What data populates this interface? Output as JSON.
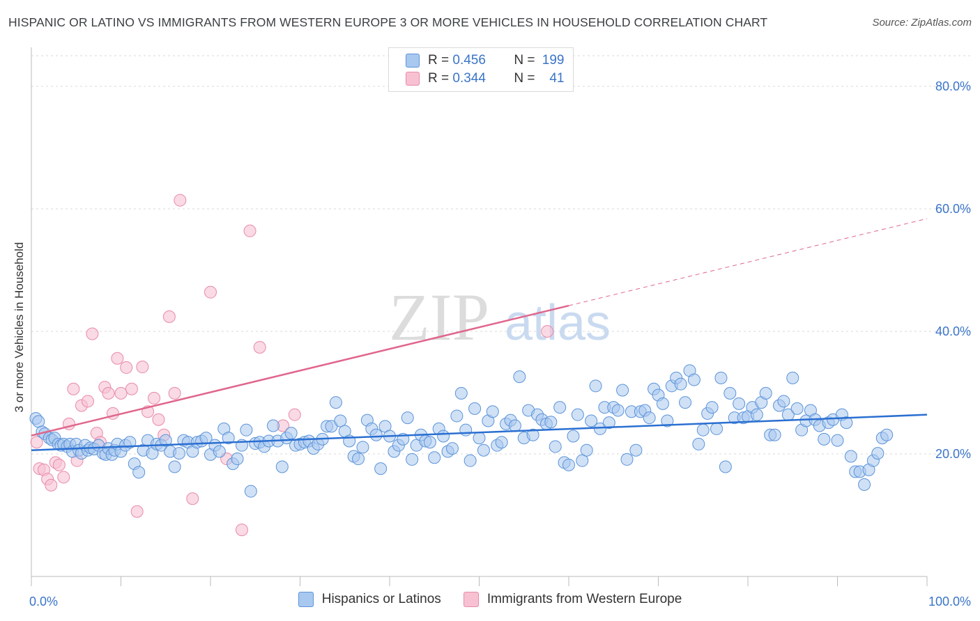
{
  "title": "HISPANIC OR LATINO VS IMMIGRANTS FROM WESTERN EUROPE 3 OR MORE VEHICLES IN HOUSEHOLD CORRELATION CHART",
  "source": "Source: ZipAtlas.com",
  "watermark": {
    "zip": "ZIP",
    "atlas": "atlas"
  },
  "legend_top": [
    {
      "r_label": "R = ",
      "r_value": "0.456",
      "n_label": "N = ",
      "n_value": "199"
    },
    {
      "r_label": "R = ",
      "r_value": "0.344",
      "n_label": "N = ",
      "n_value": "41"
    }
  ],
  "legend_bottom": [
    {
      "label": "Hispanics or Latinos"
    },
    {
      "label": "Immigrants from Western Europe"
    }
  ],
  "colors": {
    "blue_fill": "#a9c8ef",
    "blue_stroke": "#5b93d9",
    "blue_line": "#2a6fd1",
    "pink_fill": "#f7c1d2",
    "pink_stroke": "#e88aa8",
    "pink_line": "#e0668c",
    "tick_label": "#3a74c9",
    "grid": "#d8d8d8"
  },
  "chart_data": {
    "type": "scatter",
    "title": "HISPANIC OR LATINO VS IMMIGRANTS FROM WESTERN EUROPE 3 OR MORE VEHICLES IN HOUSEHOLD CORRELATION CHART",
    "xlabel": "",
    "ylabel": "3 or more Vehicles in Household",
    "xlim": [
      0,
      100
    ],
    "ylim": [
      0,
      85
    ],
    "x_tick_labels": [
      "0.0%",
      "100.0%"
    ],
    "y_ticks": [
      20,
      40,
      60,
      80
    ],
    "y_tick_labels": [
      "20.0%",
      "40.0%",
      "60.0%",
      "80.0%"
    ],
    "grid": true,
    "legend_position": "top-center",
    "series": [
      {
        "name": "Hispanics or Latinos",
        "R": 0.456,
        "N": 199,
        "trend": {
          "x": [
            0,
            100
          ],
          "y": [
            20.6,
            26.4
          ]
        },
        "points": [
          [
            0.5,
            25.8
          ],
          [
            0.8,
            25.3
          ],
          [
            1.2,
            23.6
          ],
          [
            1.5,
            23.3
          ],
          [
            2.0,
            22.6
          ],
          [
            2.3,
            22.3
          ],
          [
            2.6,
            22.6
          ],
          [
            3.0,
            21.6
          ],
          [
            3.3,
            21.4
          ],
          [
            3.6,
            21.6
          ],
          [
            4.0,
            21.2
          ],
          [
            4.3,
            21.6
          ],
          [
            4.6,
            20.4
          ],
          [
            5.0,
            21.6
          ],
          [
            5.3,
            20.6
          ],
          [
            5.6,
            20.1
          ],
          [
            6.0,
            21.4
          ],
          [
            6.3,
            20.6
          ],
          [
            6.6,
            21.0
          ],
          [
            7.0,
            20.8
          ],
          [
            7.5,
            21.4
          ],
          [
            8.0,
            20.1
          ],
          [
            8.3,
            19.9
          ],
          [
            8.6,
            20.9
          ],
          [
            9.0,
            19.9
          ],
          [
            9.3,
            20.6
          ],
          [
            9.6,
            21.6
          ],
          [
            10.0,
            20.4
          ],
          [
            10.5,
            21.4
          ],
          [
            11.0,
            21.9
          ],
          [
            11.5,
            18.4
          ],
          [
            12.0,
            17.0
          ],
          [
            12.5,
            20.6
          ],
          [
            13.0,
            22.2
          ],
          [
            13.5,
            20.1
          ],
          [
            14.0,
            21.6
          ],
          [
            14.5,
            21.4
          ],
          [
            15.0,
            22.2
          ],
          [
            15.5,
            20.4
          ],
          [
            16.0,
            17.9
          ],
          [
            16.5,
            20.1
          ],
          [
            17.0,
            22.2
          ],
          [
            17.5,
            21.9
          ],
          [
            18.0,
            20.4
          ],
          [
            18.5,
            21.9
          ],
          [
            19.0,
            22.1
          ],
          [
            19.5,
            22.6
          ],
          [
            20.0,
            19.9
          ],
          [
            20.5,
            21.4
          ],
          [
            21.0,
            20.4
          ],
          [
            21.5,
            24.1
          ],
          [
            22.0,
            22.6
          ],
          [
            22.5,
            18.4
          ],
          [
            23.0,
            19.2
          ],
          [
            23.5,
            21.4
          ],
          [
            24.0,
            23.9
          ],
          [
            24.5,
            13.9
          ],
          [
            25.0,
            21.7
          ],
          [
            25.5,
            21.9
          ],
          [
            26.0,
            21.2
          ],
          [
            26.5,
            22.1
          ],
          [
            27.0,
            24.6
          ],
          [
            27.5,
            22.1
          ],
          [
            28.0,
            17.9
          ],
          [
            28.5,
            22.6
          ],
          [
            29.0,
            23.4
          ],
          [
            29.5,
            21.4
          ],
          [
            30.0,
            21.6
          ],
          [
            30.5,
            21.9
          ],
          [
            31.0,
            22.1
          ],
          [
            31.5,
            20.9
          ],
          [
            32.0,
            21.6
          ],
          [
            32.5,
            22.4
          ],
          [
            33.0,
            24.5
          ],
          [
            33.5,
            24.5
          ],
          [
            34.0,
            28.4
          ],
          [
            34.5,
            25.4
          ],
          [
            35.0,
            23.7
          ],
          [
            35.5,
            22.1
          ],
          [
            36.0,
            19.6
          ],
          [
            36.5,
            19.2
          ],
          [
            37.0,
            21.1
          ],
          [
            37.5,
            25.5
          ],
          [
            38.0,
            24.1
          ],
          [
            38.5,
            23.1
          ],
          [
            39.0,
            17.6
          ],
          [
            39.5,
            24.5
          ],
          [
            40.0,
            22.9
          ],
          [
            40.5,
            20.4
          ],
          [
            41.0,
            21.4
          ],
          [
            41.5,
            22.4
          ],
          [
            42.0,
            25.9
          ],
          [
            42.5,
            19.1
          ],
          [
            43.0,
            21.4
          ],
          [
            43.5,
            23.1
          ],
          [
            44.0,
            22.1
          ],
          [
            44.5,
            21.9
          ],
          [
            45.0,
            19.4
          ],
          [
            45.5,
            24.1
          ],
          [
            46.0,
            22.9
          ],
          [
            46.5,
            20.4
          ],
          [
            47.0,
            20.9
          ],
          [
            47.5,
            26.2
          ],
          [
            48.0,
            29.9
          ],
          [
            48.5,
            23.9
          ],
          [
            49.0,
            18.9
          ],
          [
            49.5,
            27.4
          ],
          [
            50.0,
            22.6
          ],
          [
            50.5,
            20.6
          ],
          [
            51.0,
            25.4
          ],
          [
            51.5,
            26.9
          ],
          [
            52.0,
            21.4
          ],
          [
            52.5,
            21.9
          ],
          [
            53.0,
            24.9
          ],
          [
            53.5,
            25.5
          ],
          [
            54.0,
            24.6
          ],
          [
            54.5,
            32.6
          ],
          [
            55.0,
            22.6
          ],
          [
            55.5,
            27.1
          ],
          [
            56.0,
            23.1
          ],
          [
            56.5,
            26.4
          ],
          [
            57.0,
            25.6
          ],
          [
            57.5,
            24.9
          ],
          [
            58.0,
            25.2
          ],
          [
            58.5,
            21.2
          ],
          [
            59.0,
            27.6
          ],
          [
            59.5,
            18.6
          ],
          [
            60.0,
            18.2
          ],
          [
            60.5,
            22.9
          ],
          [
            61.0,
            26.4
          ],
          [
            61.5,
            18.9
          ],
          [
            62.0,
            20.6
          ],
          [
            62.5,
            25.4
          ],
          [
            63.0,
            31.1
          ],
          [
            63.5,
            24.1
          ],
          [
            64.0,
            27.6
          ],
          [
            64.5,
            25.1
          ],
          [
            65.0,
            27.6
          ],
          [
            65.5,
            27.1
          ],
          [
            66.0,
            30.4
          ],
          [
            66.5,
            19.1
          ],
          [
            67.0,
            26.9
          ],
          [
            67.5,
            20.6
          ],
          [
            68.0,
            26.9
          ],
          [
            68.5,
            27.1
          ],
          [
            69.0,
            25.9
          ],
          [
            69.5,
            30.6
          ],
          [
            70.0,
            29.6
          ],
          [
            70.5,
            28.2
          ],
          [
            71.0,
            25.4
          ],
          [
            71.5,
            31.1
          ],
          [
            72.0,
            32.4
          ],
          [
            72.5,
            31.4
          ],
          [
            73.0,
            28.4
          ],
          [
            73.5,
            33.6
          ],
          [
            74.0,
            32.1
          ],
          [
            74.5,
            21.6
          ],
          [
            75.0,
            23.9
          ],
          [
            75.5,
            26.6
          ],
          [
            76.0,
            27.6
          ],
          [
            76.5,
            24.1
          ],
          [
            77.0,
            32.4
          ],
          [
            77.5,
            17.9
          ],
          [
            78.0,
            29.9
          ],
          [
            78.5,
            25.9
          ],
          [
            79.0,
            28.2
          ],
          [
            79.5,
            25.9
          ],
          [
            80.0,
            26.1
          ],
          [
            80.5,
            27.6
          ],
          [
            81.0,
            26.4
          ],
          [
            81.5,
            28.4
          ],
          [
            82.0,
            29.9
          ],
          [
            82.5,
            23.1
          ],
          [
            83.0,
            23.1
          ],
          [
            83.5,
            27.9
          ],
          [
            84.0,
            28.6
          ],
          [
            84.5,
            26.4
          ],
          [
            85.0,
            32.4
          ],
          [
            85.5,
            27.4
          ],
          [
            86.0,
            23.9
          ],
          [
            86.5,
            25.4
          ],
          [
            87.0,
            27.1
          ],
          [
            87.5,
            25.6
          ],
          [
            88.0,
            24.6
          ],
          [
            88.5,
            22.4
          ],
          [
            89.0,
            25.1
          ],
          [
            89.5,
            25.6
          ],
          [
            90.0,
            22.2
          ],
          [
            90.5,
            26.4
          ],
          [
            91.0,
            25.1
          ],
          [
            91.5,
            19.6
          ],
          [
            92.0,
            17.1
          ],
          [
            92.5,
            17.1
          ],
          [
            93.0,
            15.0
          ],
          [
            93.5,
            17.4
          ],
          [
            94.0,
            18.9
          ],
          [
            94.5,
            20.1
          ],
          [
            95.0,
            22.6
          ],
          [
            95.5,
            23.1
          ]
        ]
      },
      {
        "name": "Immigrants from Western Europe",
        "R": 0.344,
        "N": 41,
        "trend": {
          "x": [
            0,
            60
          ],
          "y": [
            23.0,
            44.2
          ]
        },
        "trend_extension": {
          "x": [
            60,
            100
          ],
          "y": [
            44.2,
            58.4
          ]
        },
        "points": [
          [
            0.6,
            21.9
          ],
          [
            0.9,
            17.6
          ],
          [
            1.4,
            17.4
          ],
          [
            1.8,
            15.9
          ],
          [
            2.2,
            14.9
          ],
          [
            2.7,
            18.6
          ],
          [
            3.1,
            18.2
          ],
          [
            3.6,
            16.2
          ],
          [
            4.2,
            24.9
          ],
          [
            4.7,
            30.6
          ],
          [
            5.1,
            18.9
          ],
          [
            5.6,
            27.9
          ],
          [
            6.3,
            28.6
          ],
          [
            6.8,
            39.6
          ],
          [
            7.3,
            23.4
          ],
          [
            7.7,
            21.9
          ],
          [
            8.2,
            30.9
          ],
          [
            8.6,
            29.9
          ],
          [
            9.1,
            26.6
          ],
          [
            9.6,
            35.6
          ],
          [
            10.0,
            29.9
          ],
          [
            10.6,
            34.1
          ],
          [
            11.2,
            30.6
          ],
          [
            11.8,
            10.6
          ],
          [
            12.4,
            34.2
          ],
          [
            13.0,
            26.9
          ],
          [
            13.7,
            29.1
          ],
          [
            14.2,
            25.6
          ],
          [
            14.8,
            23.1
          ],
          [
            15.4,
            42.4
          ],
          [
            16.0,
            29.9
          ],
          [
            16.6,
            61.4
          ],
          [
            18.0,
            12.7
          ],
          [
            20.0,
            46.4
          ],
          [
            21.8,
            19.2
          ],
          [
            23.5,
            7.6
          ],
          [
            24.4,
            56.4
          ],
          [
            25.5,
            37.4
          ],
          [
            28.1,
            24.6
          ],
          [
            29.4,
            26.4
          ],
          [
            57.6,
            40.0
          ]
        ]
      }
    ]
  }
}
